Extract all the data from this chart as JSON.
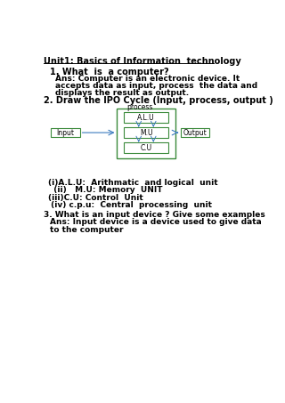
{
  "bg_color": "#ffffff",
  "title_prefix": "Unit1: ",
  "title_underlined": "Basics of Information  technology",
  "q1_header": "1. What  is  a computer?",
  "q1_ans_lines": [
    "Ans: Computer is an electronic device. It",
    "accepts data as input, process  the data and",
    "displays the result as output."
  ],
  "q2_header": "2. Draw the IPO Cycle (Input, process, output )",
  "diagram_process_label": "process",
  "diagram_alu_label": "A.L.U",
  "diagram_mu_label": "M.U",
  "diagram_cu_label": "C.U",
  "diagram_input_label": "Input",
  "diagram_output_label": "Output",
  "points_text": [
    "(i)A.L.U:  Arithmatic  and logical  unit",
    "  (ii)   M.U: Memory  UNIT",
    "(iii)C.U: Control  Unit",
    " (iv) c.p.u:  Central  processing  unit"
  ],
  "q3_header": "3. What is an input device ? Give some examples",
  "q3_ans_lines": [
    "Ans: Input device is a device used to give data",
    "to the computer"
  ],
  "box_color": "#3a8a3a",
  "arrow_color": "#3a7abf",
  "text_color": "#000000",
  "title_fontsize": 7.0,
  "body_fontsize": 6.5,
  "small_fontsize": 5.5
}
